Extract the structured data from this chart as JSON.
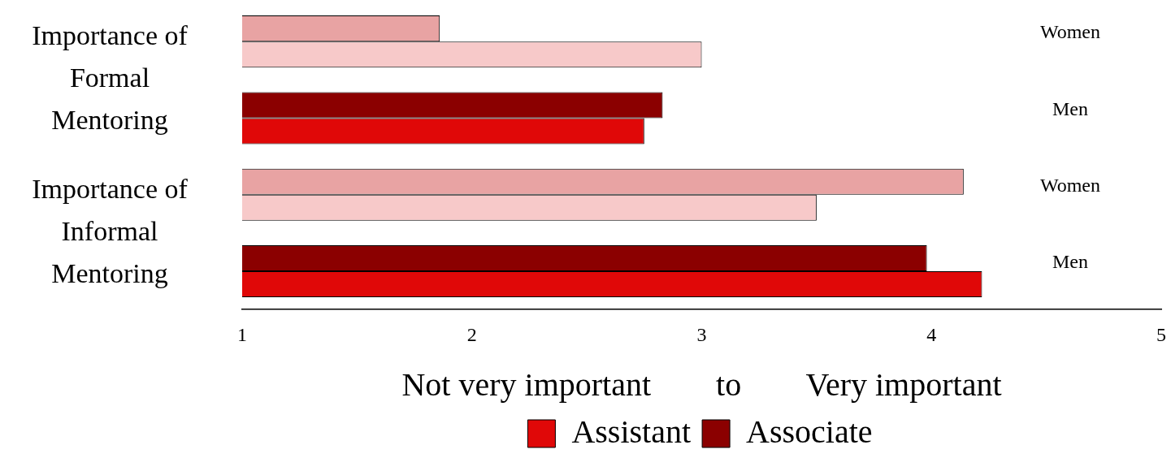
{
  "chart_data": {
    "type": "bar",
    "orientation": "horizontal",
    "categories": [
      "Women",
      "Men",
      "Women",
      "Men"
    ],
    "series": [
      {
        "name": "Associate",
        "color": "#8b0000",
        "colors": [
          "#e8a3a3",
          "#8b0000",
          "#e8a3a3",
          "#8b0000"
        ],
        "values": [
          1.86,
          2.83,
          4.14,
          3.98
        ]
      },
      {
        "name": "Assistant",
        "color": "#e00808",
        "colors": [
          "#f7c9c9",
          "#e00808",
          "#f7c9c9",
          "#e00808"
        ],
        "values": [
          3.0,
          2.75,
          3.5,
          4.22
        ]
      }
    ],
    "xlim": [
      1,
      5
    ],
    "xticks": [
      1,
      2,
      3,
      4,
      5
    ],
    "xlabel": "Not very important        to        Very important",
    "annotations": [
      "Importance of\nFormal\nMentoring",
      "Importance of\nInformal\nMentoring"
    ],
    "grid": false,
    "legend": "bottom"
  }
}
